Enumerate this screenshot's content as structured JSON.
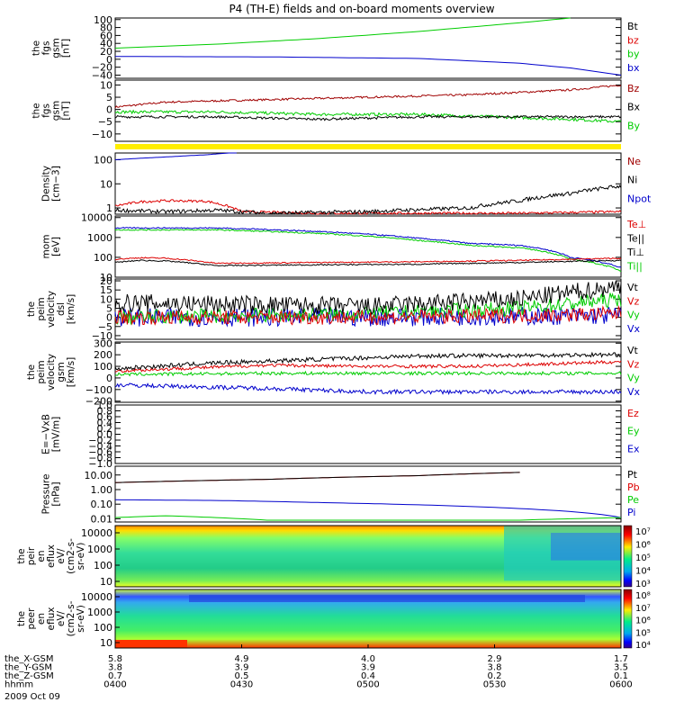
{
  "title": "P4 (TH-E) fields and on-board moments overview",
  "colors": {
    "black": "#000000",
    "red": "#dd0000",
    "green": "#00cc00",
    "blue": "#0000cc",
    "darkred": "#a00000",
    "yellow": "#ffee00"
  },
  "chart_data": [
    {
      "type": "line",
      "panel": "fgs-gsm-1",
      "ylabel": [
        "the",
        "fgs",
        "gsm",
        "[nT]"
      ],
      "yticks": [
        "100",
        "80",
        "60",
        "40",
        "20",
        "0",
        "−20",
        "−40"
      ],
      "ylim": [
        -48,
        104
      ],
      "scale": "linear",
      "legend": [
        {
          "label": "Bt",
          "color": "#000000"
        },
        {
          "label": "bz",
          "color": "#dd0000"
        },
        {
          "label": "by",
          "color": "#00cc00"
        },
        {
          "label": "bx",
          "color": "#0000cc"
        }
      ],
      "series": [
        {
          "name": "by",
          "color": "#00cc00",
          "x": [
            0,
            0.2,
            0.4,
            0.6,
            0.8,
            0.9
          ],
          "y": [
            28,
            38,
            52,
            70,
            92,
            104
          ]
        },
        {
          "name": "bx",
          "color": "#0000cc",
          "x": [
            0,
            0.3,
            0.6,
            0.8,
            0.9,
            1.0
          ],
          "y": [
            7,
            6,
            2,
            -10,
            -22,
            -40
          ]
        }
      ]
    },
    {
      "type": "line",
      "panel": "fgs-gsm-2",
      "ylabel": [
        "the",
        "fgs",
        "gsm",
        "[nT]"
      ],
      "yticks": [
        "10",
        "5",
        "0",
        "−5",
        "−10"
      ],
      "ylim": [
        -13,
        12
      ],
      "scale": "linear",
      "legend": [
        {
          "label": "Bz",
          "color": "#a00000"
        },
        {
          "label": "Bx",
          "color": "#000000"
        },
        {
          "label": "By",
          "color": "#00cc00"
        }
      ],
      "series": [
        {
          "name": "Bz",
          "color": "#a00000",
          "noise": 0.4,
          "x": [
            0,
            0.1,
            0.3,
            0.5,
            0.7,
            0.9,
            1.0
          ],
          "y": [
            1,
            3,
            4,
            5,
            6,
            8,
            10
          ]
        },
        {
          "name": "By",
          "color": "#00cc00",
          "noise": 0.6,
          "x": [
            0,
            0.2,
            0.4,
            0.6,
            0.75,
            0.9,
            1.0
          ],
          "y": [
            -1,
            -1,
            -2,
            -2,
            -3,
            -4,
            -5
          ]
        },
        {
          "name": "Bx",
          "color": "#000000",
          "noise": 0.5,
          "x": [
            0,
            0.2,
            0.4,
            0.6,
            0.8,
            1.0
          ],
          "y": [
            -3,
            -3,
            -4,
            -3,
            -3,
            -3
          ]
        }
      ]
    },
    {
      "type": "line",
      "panel": "density",
      "ylabel": [
        "Density",
        "[cm−3]"
      ],
      "yticks": [
        "100",
        "10",
        "1"
      ],
      "ylim": [
        0.55,
        190
      ],
      "scale": "log",
      "legend": [
        {
          "label": "Ne",
          "color": "#a00000"
        },
        {
          "label": "Ni",
          "color": "#000000"
        },
        {
          "label": "Npot",
          "color": "#0000cc"
        }
      ],
      "series": [
        {
          "name": "Npot",
          "color": "#0000cc",
          "x": [
            0,
            0.1,
            0.18,
            0.24
          ],
          "y": [
            100,
            130,
            160,
            200
          ]
        },
        {
          "name": "Ne",
          "color": "#dd0000",
          "noise": 0.05,
          "x": [
            0,
            0.05,
            0.1,
            0.18,
            0.25,
            0.4,
            0.6,
            0.8,
            1.0
          ],
          "y": [
            1.2,
            1.8,
            2.0,
            1.9,
            0.7,
            0.6,
            0.6,
            0.6,
            0.7
          ]
        },
        {
          "name": "Ni",
          "color": "#000000",
          "noise": 0.08,
          "x": [
            0,
            0.1,
            0.2,
            0.3,
            0.5,
            0.7,
            0.8,
            0.9,
            1.0
          ],
          "y": [
            0.8,
            0.7,
            0.8,
            0.6,
            0.7,
            1.0,
            2.0,
            4.0,
            8.0
          ]
        }
      ]
    },
    {
      "type": "line",
      "panel": "temperature",
      "ylabel": [
        "mom",
        "[eV]"
      ],
      "yticks": [
        "10000",
        "1000",
        "100",
        "10"
      ],
      "ylim": [
        10,
        12000
      ],
      "scale": "log",
      "legend": [
        {
          "label": "Te⊥",
          "color": "#dd0000"
        },
        {
          "label": "Te||",
          "color": "#000000"
        },
        {
          "label": "Ti⊥",
          "color": "#000000"
        },
        {
          "label": "Ti||",
          "color": "#00cc00"
        }
      ],
      "series": [
        {
          "name": "Ti⊥",
          "color": "#0000cc",
          "noise": 0.03,
          "x": [
            0,
            0.2,
            0.4,
            0.6,
            0.7,
            0.8,
            0.9,
            1.0
          ],
          "y": [
            3000,
            3000,
            2000,
            900,
            500,
            400,
            100,
            30
          ]
        },
        {
          "name": "Ti||",
          "color": "#00cc00",
          "noise": 0.03,
          "x": [
            0,
            0.2,
            0.4,
            0.6,
            0.7,
            0.8,
            0.9,
            1.0
          ],
          "y": [
            2400,
            2400,
            1600,
            700,
            400,
            300,
            80,
            20
          ]
        },
        {
          "name": "Te⊥",
          "color": "#dd0000",
          "noise": 0.03,
          "x": [
            0,
            0.05,
            0.1,
            0.2,
            0.4,
            0.6,
            0.8,
            1.0
          ],
          "y": [
            80,
            95,
            90,
            50,
            55,
            60,
            70,
            90
          ]
        },
        {
          "name": "Te||",
          "color": "#000000",
          "noise": 0.03,
          "x": [
            0,
            0.05,
            0.1,
            0.2,
            0.4,
            0.6,
            0.8,
            1.0
          ],
          "y": [
            55,
            70,
            65,
            38,
            42,
            45,
            55,
            70
          ]
        }
      ]
    },
    {
      "type": "line",
      "panel": "peim-velocity-dsl",
      "ylabel": [
        "the",
        "peim",
        "velocity",
        "dsl",
        "[km/s]"
      ],
      "yticks": [
        "20",
        "15",
        "10",
        "5",
        "0",
        "−5",
        "−10"
      ],
      "ylim": [
        -12,
        21
      ],
      "scale": "linear",
      "legend": [
        {
          "label": "Vt",
          "color": "#000000"
        },
        {
          "label": "Vz",
          "color": "#dd0000"
        },
        {
          "label": "Vy",
          "color": "#00cc00"
        },
        {
          "label": "Vx",
          "color": "#0000cc"
        }
      ],
      "series": [
        {
          "name": "Vx",
          "color": "#0000cc",
          "noise": 5,
          "x": [
            0,
            0.5,
            1.0
          ],
          "y": [
            0,
            0,
            1
          ]
        },
        {
          "name": "Vy",
          "color": "#00cc00",
          "noise": 4,
          "x": [
            0,
            0.5,
            0.8,
            1.0
          ],
          "y": [
            0,
            2,
            5,
            10
          ]
        },
        {
          "name": "Vz",
          "color": "#dd0000",
          "noise": 4,
          "x": [
            0,
            0.5,
            0.8,
            1.0
          ],
          "y": [
            0,
            0,
            1,
            2
          ]
        },
        {
          "name": "Vt",
          "color": "#000000",
          "noise": 5,
          "x": [
            0,
            0.5,
            0.8,
            1.0
          ],
          "y": [
            8,
            6,
            10,
            17
          ]
        }
      ]
    },
    {
      "type": "line",
      "panel": "peim-velocity-gsm",
      "ylabel": [
        "the",
        "peim",
        "velocity",
        "gsm",
        "[km/s]"
      ],
      "yticks": [
        "300",
        "200",
        "100",
        "0",
        "−100",
        "−200"
      ],
      "ylim": [
        -210,
        310
      ],
      "scale": "linear",
      "legend": [
        {
          "label": "Vt",
          "color": "#000000"
        },
        {
          "label": "Vz",
          "color": "#dd0000"
        },
        {
          "label": "Vy",
          "color": "#00cc00"
        },
        {
          "label": "Vx",
          "color": "#0000cc"
        }
      ],
      "series": [
        {
          "name": "Vx",
          "color": "#0000cc",
          "noise": 18,
          "x": [
            0,
            0.3,
            0.5,
            0.7,
            1.0
          ],
          "y": [
            -60,
            -90,
            -120,
            -120,
            -120
          ]
        },
        {
          "name": "Vy",
          "color": "#00cc00",
          "noise": 14,
          "x": [
            0,
            0.3,
            0.5,
            1.0
          ],
          "y": [
            30,
            40,
            40,
            40
          ]
        },
        {
          "name": "Vz",
          "color": "#dd0000",
          "noise": 14,
          "x": [
            0,
            0.3,
            0.5,
            0.7,
            1.0
          ],
          "y": [
            60,
            110,
            100,
            100,
            140
          ]
        },
        {
          "name": "Vt",
          "color": "#000000",
          "noise": 18,
          "x": [
            0,
            0.2,
            0.4,
            0.6,
            1.0
          ],
          "y": [
            80,
            130,
            160,
            190,
            200
          ]
        }
      ]
    },
    {
      "type": "line",
      "panel": "e-vxb",
      "ylabel": [
        "E=−VxB",
        "[mV/m]"
      ],
      "yticks": [
        "1.0",
        "0.8",
        "0.6",
        "0.4",
        "0.2",
        "0.0",
        "−0.2",
        "−0.4",
        "−0.6",
        "−0.8",
        "−1.0"
      ],
      "ylim": [
        -1.0,
        1.0
      ],
      "scale": "linear",
      "legend": [
        {
          "label": "Ez",
          "color": "#dd0000"
        },
        {
          "label": "Ey",
          "color": "#00cc00"
        },
        {
          "label": "Ex",
          "color": "#0000cc"
        }
      ],
      "series": []
    },
    {
      "type": "line",
      "panel": "pressure",
      "ylabel": [
        "Pressure",
        "[nPa]"
      ],
      "yticks": [
        "10.00",
        "1.00",
        "0.10",
        "0.01"
      ],
      "ylim": [
        0.006,
        40
      ],
      "scale": "log",
      "legend": [
        {
          "label": "Pt",
          "color": "#000000"
        },
        {
          "label": "Pb",
          "color": "#dd0000"
        },
        {
          "label": "Pe",
          "color": "#00cc00"
        },
        {
          "label": "Pi",
          "color": "#0000cc"
        }
      ],
      "series": [
        {
          "name": "Pb",
          "color": "#dd0000",
          "x": [
            0,
            0.3,
            0.6,
            0.8
          ],
          "y": [
            3,
            5,
            9,
            15
          ]
        },
        {
          "name": "Pt",
          "color": "#000000",
          "x": [
            0,
            0.3,
            0.6,
            0.8
          ],
          "y": [
            3,
            5,
            9,
            15
          ]
        },
        {
          "name": "Pi",
          "color": "#0000cc",
          "x": [
            0,
            0.2,
            0.4,
            0.6,
            0.8,
            1.0
          ],
          "y": [
            0.2,
            0.18,
            0.13,
            0.09,
            0.05,
            0.012
          ]
        },
        {
          "name": "Pe",
          "color": "#00cc00",
          "x": [
            0,
            0.1,
            0.3,
            0.6,
            0.8,
            1.0
          ],
          "y": [
            0.012,
            0.016,
            0.008,
            0.008,
            0.008,
            0.012
          ]
        }
      ]
    },
    {
      "type": "heatmap",
      "panel": "peir-en-eflux",
      "ylabel": [
        "the",
        "peir",
        "en",
        "eflux",
        "eV/",
        "(cm2-s-",
        "sr-eV)"
      ],
      "yticks": [
        "10000",
        "1000",
        "100",
        "10"
      ],
      "colorbar_ticks": [
        "10⁷",
        "10⁶",
        "10⁵",
        "10⁴",
        "10³"
      ],
      "scale": "log"
    },
    {
      "type": "heatmap",
      "panel": "peer-en-eflux",
      "ylabel": [
        "the",
        "peer",
        "en",
        "eflux",
        "eV/",
        "(cm2-s-",
        "sr-eV)"
      ],
      "yticks": [
        "10000",
        "1000",
        "100",
        "10"
      ],
      "colorbar_ticks": [
        "10⁸",
        "10⁷",
        "10⁶",
        "10⁵",
        "10⁴"
      ],
      "scale": "log"
    }
  ],
  "time_axis": {
    "rows": [
      {
        "label": "the_X-GSM",
        "values": [
          "5.8",
          "4.9",
          "4.0",
          "2.9",
          "1.7"
        ]
      },
      {
        "label": "the_Y-GSM",
        "values": [
          "3.8",
          "3.9",
          "3.9",
          "3.8",
          "3.5"
        ]
      },
      {
        "label": "the_Z-GSM",
        "values": [
          "0.7",
          "0.5",
          "0.4",
          "0.2",
          "0.1"
        ]
      },
      {
        "label": "hhmm",
        "values": [
          "0400",
          "0430",
          "0500",
          "0530",
          "0600"
        ]
      }
    ],
    "date": "2009 Oct 09"
  }
}
